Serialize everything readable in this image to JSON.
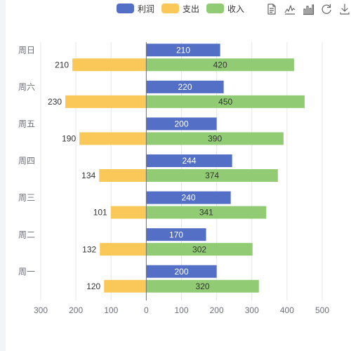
{
  "legend": {
    "items": [
      {
        "name": "利润",
        "color": "#5470c6"
      },
      {
        "name": "支出",
        "color": "#fac858"
      },
      {
        "name": "收入",
        "color": "#91cc75"
      }
    ]
  },
  "toolbox": {
    "icons": [
      "data-view-icon",
      "line-chart-icon",
      "bar-chart-icon",
      "restore-icon",
      "save-image-icon"
    ]
  },
  "chart_data": {
    "type": "bar",
    "orientation": "horizontal",
    "categories": [
      "周一",
      "周二",
      "周三",
      "周四",
      "周五",
      "周六",
      "周日"
    ],
    "series": [
      {
        "name": "利润",
        "color": "#5470c6",
        "values": [
          200,
          170,
          240,
          244,
          200,
          220,
          210
        ]
      },
      {
        "name": "收入",
        "color": "#91cc75",
        "values": [
          320,
          302,
          341,
          374,
          390,
          450,
          420
        ]
      },
      {
        "name": "支出",
        "color": "#fac858",
        "values": [
          -120,
          -132,
          -101,
          -134,
          -190,
          -230,
          -210
        ]
      }
    ],
    "xlim": [
      -300,
      500
    ],
    "x_ticks": [
      -300,
      -200,
      -100,
      0,
      100,
      200,
      300,
      400,
      500
    ],
    "x_tick_labels": [
      "300",
      "200",
      "100",
      "0",
      "100",
      "200",
      "300",
      "400",
      "500"
    ],
    "grid": true,
    "legend_position": "top-center",
    "data_labels": true
  }
}
